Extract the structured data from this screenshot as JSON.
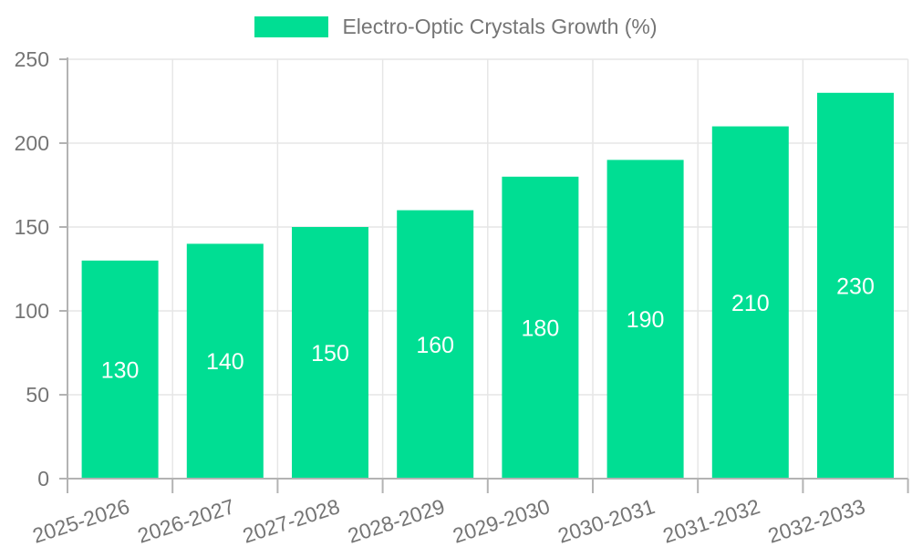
{
  "legend": {
    "label": "Electro-Optic Crystals Growth (%)"
  },
  "chart_data": {
    "type": "bar",
    "title": "",
    "categories": [
      "2025-2026",
      "2026-2027",
      "2027-2028",
      "2028-2029",
      "2029-2030",
      "2030-2031",
      "2031-2032",
      "2032-2033"
    ],
    "series": [
      {
        "name": "Electro-Optic Crystals Growth (%)",
        "values": [
          130,
          140,
          150,
          160,
          180,
          190,
          210,
          230
        ]
      }
    ],
    "xlabel": "",
    "ylabel": "",
    "ylim": [
      0,
      250
    ],
    "yticks": [
      0,
      50,
      100,
      150,
      200,
      250
    ],
    "grid": true,
    "legend_position": "top",
    "value_labels": "inside-center",
    "x_tick_rotation_deg": -18
  },
  "colors": {
    "bar": "#00de93",
    "grid": "#e6e6e6",
    "axis": "#b3b3b3",
    "axis_text": "#757575",
    "value_label": "#ffffff",
    "background": "#ffffff"
  }
}
